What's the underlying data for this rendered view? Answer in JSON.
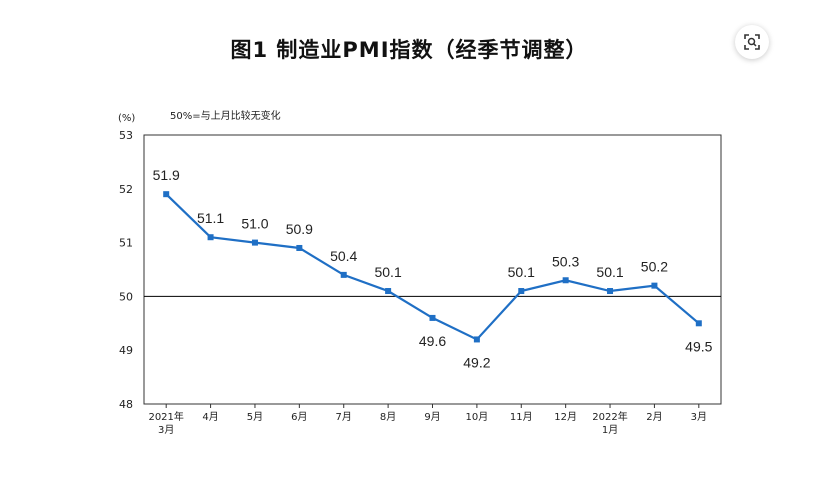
{
  "toolbar": {
    "scan_icon": "scan-icon"
  },
  "chart_data": {
    "type": "line",
    "title": "图1 制造业PMI指数（经季节调整）",
    "ylabel": "(%)",
    "note": "50%=与上月比较无变化",
    "categories": [
      [
        "2021年",
        "3月"
      ],
      [
        "4月"
      ],
      [
        "5月"
      ],
      [
        "6月"
      ],
      [
        "7月"
      ],
      [
        "8月"
      ],
      [
        "9月"
      ],
      [
        "10月"
      ],
      [
        "11月"
      ],
      [
        "12月"
      ],
      [
        "2022年",
        "1月"
      ],
      [
        "2月"
      ],
      [
        "3月"
      ]
    ],
    "values": [
      51.9,
      51.1,
      51.0,
      50.9,
      50.4,
      50.1,
      49.6,
      49.2,
      50.1,
      50.3,
      50.1,
      50.2,
      49.5
    ],
    "data_labels": [
      "51.9",
      "51.1",
      "51.0",
      "50.9",
      "50.4",
      "50.1",
      "49.6",
      "49.2",
      "50.1",
      "50.3",
      "50.1",
      "50.2",
      "49.5"
    ],
    "yticks": [
      48,
      49,
      50,
      51,
      52,
      53
    ],
    "ylim": [
      48,
      53
    ],
    "reference_line": 50,
    "grid": false,
    "line_color": "#1f6fc5"
  }
}
